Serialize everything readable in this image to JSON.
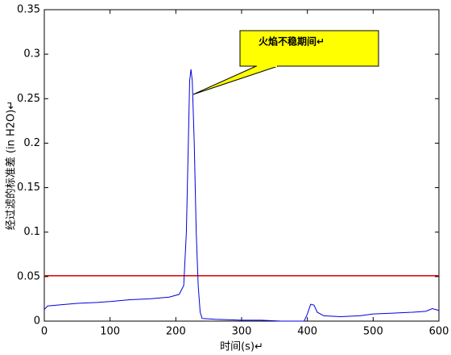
{
  "chart_data": {
    "type": "line",
    "xlabel": "时间(s)↵",
    "ylabel": "经过滤的标准差 (in H2O)↵",
    "annotation": "火焰不稳期间↵",
    "xlim": [
      0,
      600
    ],
    "ylim": [
      0,
      0.35
    ],
    "xticks": [
      0,
      100,
      200,
      300,
      400,
      500,
      600
    ],
    "yticks": [
      0,
      0.05,
      0.1,
      0.15,
      0.2,
      0.25,
      0.3,
      0.35
    ],
    "x": [
      0,
      5,
      20,
      50,
      80,
      100,
      130,
      160,
      190,
      205,
      212,
      216,
      219,
      221,
      223,
      225,
      228,
      231,
      234,
      237,
      240,
      260,
      300,
      330,
      360,
      395,
      400,
      405,
      410,
      415,
      425,
      450,
      480,
      500,
      530,
      560,
      580,
      590,
      600
    ],
    "values": [
      0.013,
      0.017,
      0.018,
      0.02,
      0.021,
      0.022,
      0.024,
      0.025,
      0.027,
      0.03,
      0.04,
      0.1,
      0.2,
      0.27,
      0.283,
      0.27,
      0.2,
      0.1,
      0.04,
      0.01,
      0.003,
      0.002,
      0.001,
      0.001,
      0,
      0,
      0.008,
      0.019,
      0.018,
      0.01,
      0.006,
      0.005,
      0.006,
      0.008,
      0.009,
      0.01,
      0.011,
      0.014,
      0.012
    ],
    "color": "#0000dd",
    "reference_line": {
      "value": 0.051,
      "color": "#dd0000"
    }
  }
}
